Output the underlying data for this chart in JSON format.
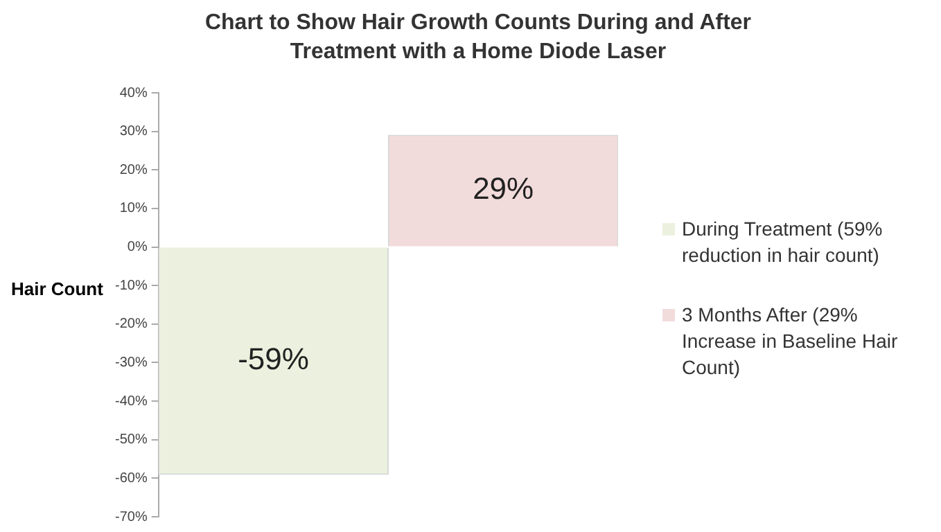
{
  "chart_data": {
    "type": "bar",
    "title": "Chart to Show Hair Growth Counts During and After Treatment with a Home Diode Laser",
    "ylabel": "Hair Count",
    "categories": [
      null
    ],
    "series": [
      {
        "name": "During Treatment (59% reduction in hair count)",
        "color": "#ebf1de",
        "values": [
          -59
        ],
        "value_labels": [
          "-59%"
        ]
      },
      {
        "name": "3 Months After (29% Increase in Baseline Hair Count)",
        "color": "#f2dcdb",
        "values": [
          29
        ],
        "value_labels": [
          "29%"
        ]
      }
    ],
    "ylim": [
      -70,
      40
    ],
    "yticks": [
      {
        "value": 40,
        "label": "40%"
      },
      {
        "value": 30,
        "label": "30%"
      },
      {
        "value": 20,
        "label": "20%"
      },
      {
        "value": 10,
        "label": "10%"
      },
      {
        "value": 0,
        "label": "0%"
      },
      {
        "value": -10,
        "label": "-10%"
      },
      {
        "value": -20,
        "label": "-20%"
      },
      {
        "value": -30,
        "label": "-30%"
      },
      {
        "value": -40,
        "label": "-40%"
      },
      {
        "value": -50,
        "label": "-50%"
      },
      {
        "value": -60,
        "label": "-60%"
      },
      {
        "value": -70,
        "label": "-70%"
      }
    ],
    "tick_labels": "y",
    "legend": "right"
  }
}
